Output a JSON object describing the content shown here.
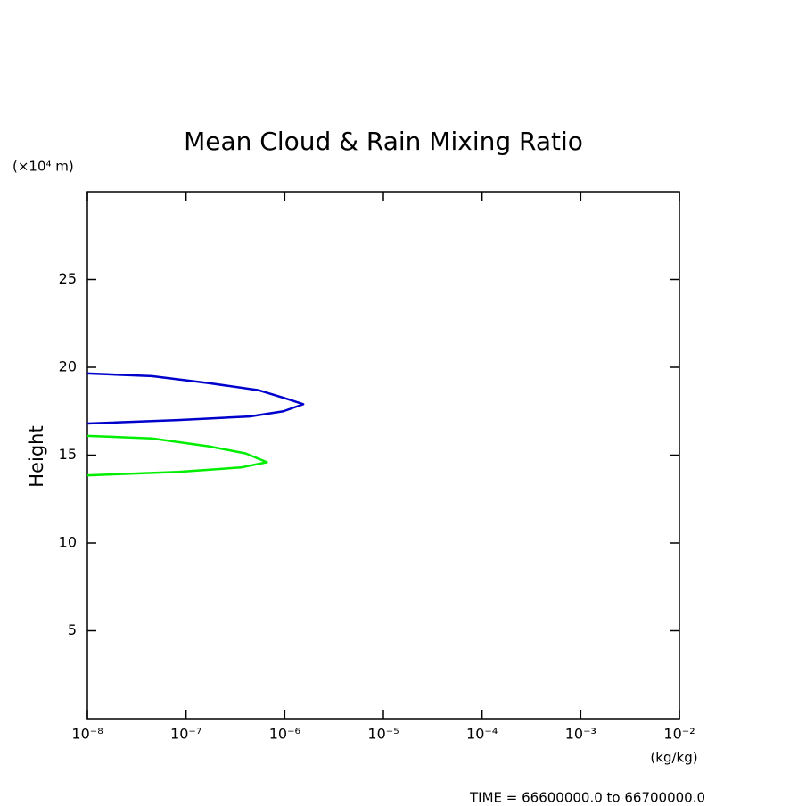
{
  "chart_data": {
    "type": "line",
    "title": "Mean Cloud & Rain Mixing Ratio",
    "y_unit_label": "(×10⁴ m)",
    "ylabel": "Height",
    "x_unit_label": "(kg/kg)",
    "footer": "TIME = 66600000.0 to 66700000.0",
    "xscale": "log",
    "xlim": [
      1e-08,
      0.01
    ],
    "xticks": [
      {
        "value": 1e-08,
        "label": "10⁻⁸"
      },
      {
        "value": 1e-07,
        "label": "10⁻⁷"
      },
      {
        "value": 1e-06,
        "label": "10⁻⁶"
      },
      {
        "value": 1e-05,
        "label": "10⁻⁵"
      },
      {
        "value": 0.0001,
        "label": "10⁻⁴"
      },
      {
        "value": 0.001,
        "label": "10⁻³"
      },
      {
        "value": 0.01,
        "label": "10⁻²"
      }
    ],
    "ylim": [
      0,
      30
    ],
    "yticks": [
      5,
      10,
      15,
      20,
      25
    ],
    "series": [
      {
        "color": "#0000cc",
        "x": [
          1e-08,
          4.5e-08,
          1.7e-07,
          5.4e-07,
          1.06e-06,
          1.54e-06,
          9.7e-07,
          4.4e-07,
          8.3e-08,
          1e-08
        ],
        "y": [
          19.65,
          19.5,
          19.1,
          18.7,
          18.2,
          17.9,
          17.5,
          17.2,
          17.0,
          16.8
        ]
      },
      {
        "color": "#00ee00",
        "x": [
          1e-08,
          4.5e-08,
          1.7e-07,
          4e-07,
          6.6e-07,
          3.6e-07,
          8.3e-08,
          1e-08
        ],
        "y": [
          16.1,
          15.95,
          15.5,
          15.1,
          14.6,
          14.3,
          14.05,
          13.85
        ]
      }
    ]
  }
}
